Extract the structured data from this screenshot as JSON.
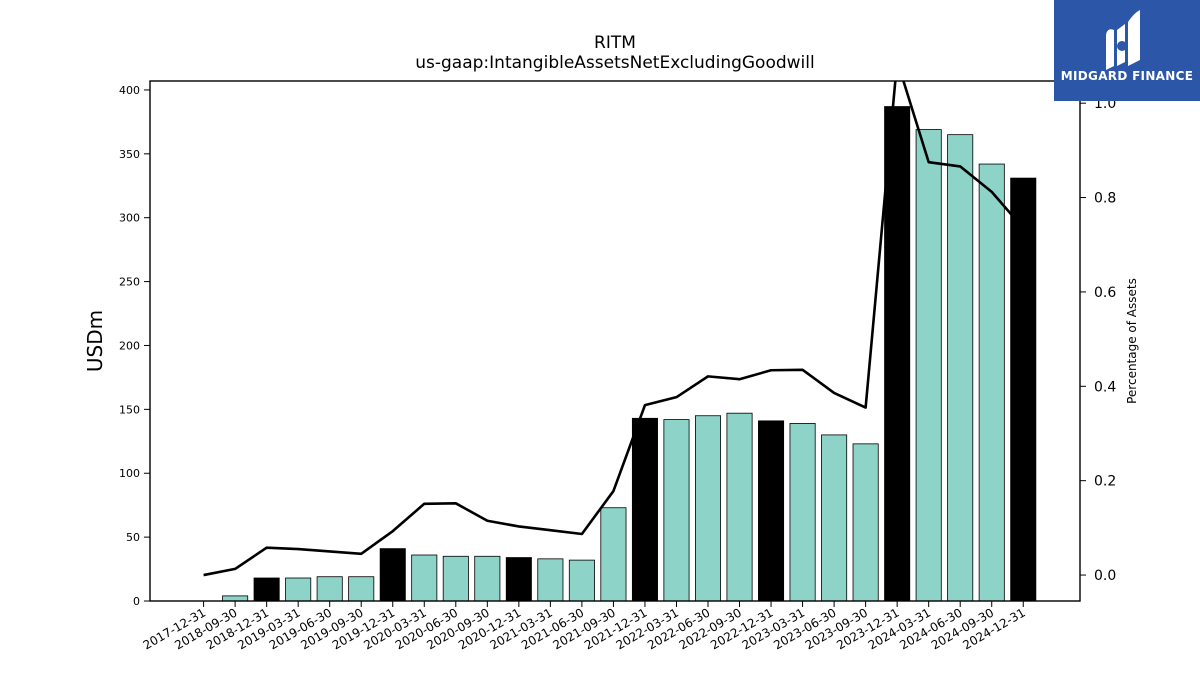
{
  "chart_data": {
    "type": "bar",
    "title": "RITM",
    "subtitle": "us-gaap:IntangibleAssetsNetExcludingGoodwill",
    "ylabel": "USDm",
    "y2label": "Percentage of Assets",
    "ylim": [
      0,
      407
    ],
    "y2lim": [
      -0.055,
      1.047
    ],
    "yticks": [
      0,
      50,
      100,
      150,
      200,
      250,
      300,
      350,
      400
    ],
    "y2ticks": [
      0.0,
      0.2,
      0.4,
      0.6,
      0.8,
      1.0
    ],
    "categories": [
      "2017-12-31",
      "2018-09-30",
      "2018-12-31",
      "2019-03-31",
      "2019-06-30",
      "2019-09-30",
      "2019-12-31",
      "2020-03-31",
      "2020-06-30",
      "2020-09-30",
      "2020-12-31",
      "2021-03-31",
      "2021-06-30",
      "2021-09-30",
      "2021-12-31",
      "2022-03-31",
      "2022-06-30",
      "2022-09-30",
      "2022-12-31",
      "2023-03-31",
      "2023-06-30",
      "2023-09-30",
      "2023-12-31",
      "2024-03-31",
      "2024-06-30",
      "2024-09-30",
      "2024-12-31"
    ],
    "series": [
      {
        "kind": "bar",
        "axis": "left",
        "values": [
          0,
          4,
          18,
          18,
          19,
          19,
          41,
          36,
          35,
          35,
          34,
          33,
          32,
          73,
          143,
          142,
          145,
          147,
          141,
          139,
          130,
          123,
          387,
          369,
          365,
          342,
          331
        ],
        "highlight": [
          false,
          false,
          true,
          false,
          false,
          false,
          true,
          false,
          false,
          false,
          true,
          false,
          false,
          false,
          true,
          false,
          false,
          false,
          true,
          false,
          false,
          false,
          true,
          false,
          false,
          false,
          true
        ]
      },
      {
        "kind": "line",
        "axis": "right",
        "values": [
          0.0,
          0.013,
          0.058,
          0.055,
          0.05,
          0.045,
          0.093,
          0.151,
          0.152,
          0.115,
          0.103,
          0.095,
          0.087,
          0.178,
          0.36,
          0.377,
          0.421,
          0.415,
          0.434,
          0.435,
          0.386,
          0.355,
          1.09,
          0.875,
          0.866,
          0.812,
          0.735
        ]
      }
    ],
    "colors": {
      "bar": "#8dd3c7",
      "bar_highlight": "#000000",
      "line": "#000000",
      "axis": "#000000"
    }
  },
  "logo": {
    "text": "MIDGARD FINANCE",
    "background": "#2c57a8",
    "icon": "midgard-m-logo"
  }
}
